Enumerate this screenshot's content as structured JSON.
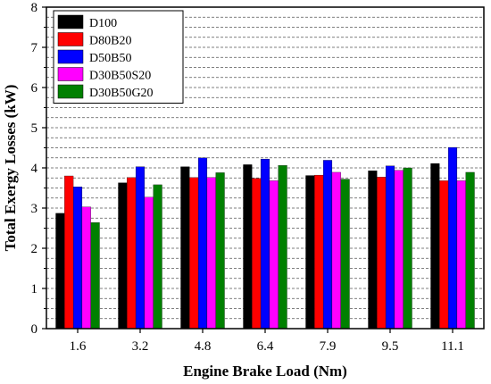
{
  "chart_data": {
    "type": "bar",
    "title": "",
    "xlabel": "Engine Brake Load (Nm)",
    "ylabel": "Total Exergy Losses (kW)",
    "categories": [
      "1.6",
      "3.2",
      "4.8",
      "6.4",
      "7.9",
      "9.5",
      "11.1"
    ],
    "ylim": [
      0,
      8
    ],
    "yticks": [
      "0",
      "1",
      "2",
      "3",
      "4",
      "5",
      "6",
      "7",
      "8"
    ],
    "grid": "horizontal dashed, every 0.25",
    "legend_position": "top-left",
    "series": [
      {
        "name": "D100",
        "color": "#000000",
        "values": [
          2.87,
          3.63,
          4.03,
          4.08,
          3.81,
          3.93,
          4.11
        ]
      },
      {
        "name": "D80B20",
        "color": "#ff0000",
        "values": [
          3.8,
          3.76,
          3.76,
          3.74,
          3.82,
          3.77,
          3.68
        ]
      },
      {
        "name": "D50B50",
        "color": "#0000ff",
        "values": [
          3.53,
          4.03,
          4.25,
          4.22,
          4.19,
          4.05,
          4.51
        ]
      },
      {
        "name": "D30B50S20",
        "color": "#ff00ff",
        "values": [
          3.03,
          3.27,
          3.76,
          3.68,
          3.89,
          3.94,
          3.68
        ]
      },
      {
        "name": "D30B50G20",
        "color": "#008000",
        "values": [
          2.64,
          3.58,
          3.88,
          4.06,
          3.72,
          4.0,
          3.89
        ]
      }
    ]
  }
}
